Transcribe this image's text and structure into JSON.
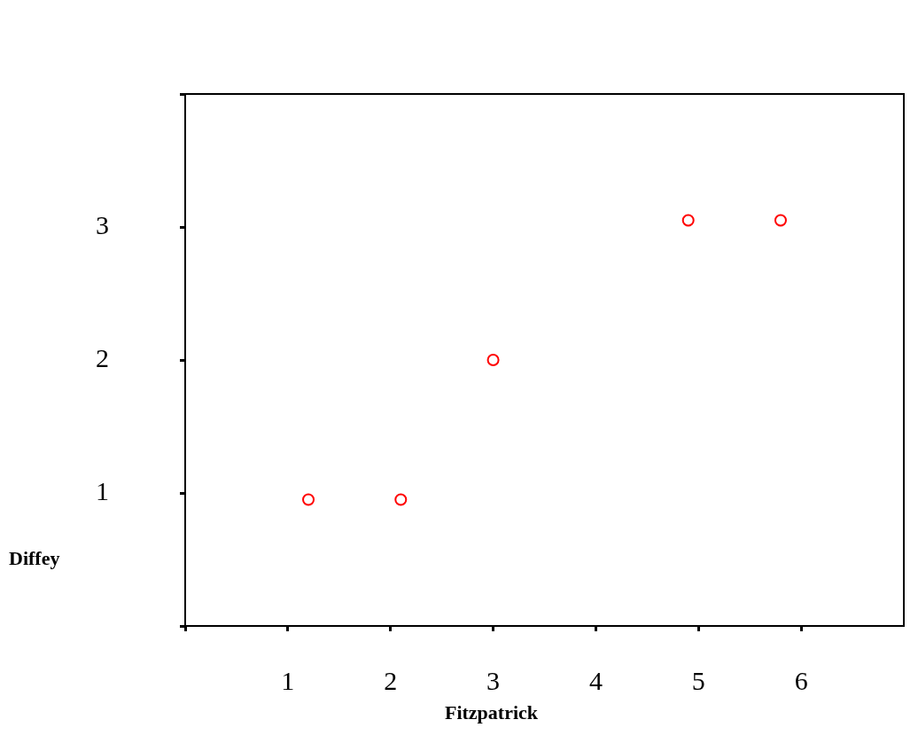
{
  "chart_data": {
    "type": "scatter",
    "xlabel": "Fitzpatrick",
    "ylabel": "Diffey",
    "x": [
      1.2,
      2.1,
      3.0,
      4.9,
      5.8
    ],
    "values": [
      0.95,
      0.95,
      2.0,
      3.05,
      3.05
    ],
    "color": "#ff0000",
    "marker": "circle",
    "xlim": [
      0,
      7
    ],
    "xticks": [
      {
        "value": 0,
        "label": null
      },
      1,
      2,
      3,
      4,
      5,
      6
    ],
    "ylim": [
      0,
      4
    ],
    "yticks": [
      {
        "value": 0,
        "label": null
      },
      1,
      2,
      3,
      {
        "value": 4,
        "label": null
      }
    ],
    "grid": false,
    "legend": false
  }
}
